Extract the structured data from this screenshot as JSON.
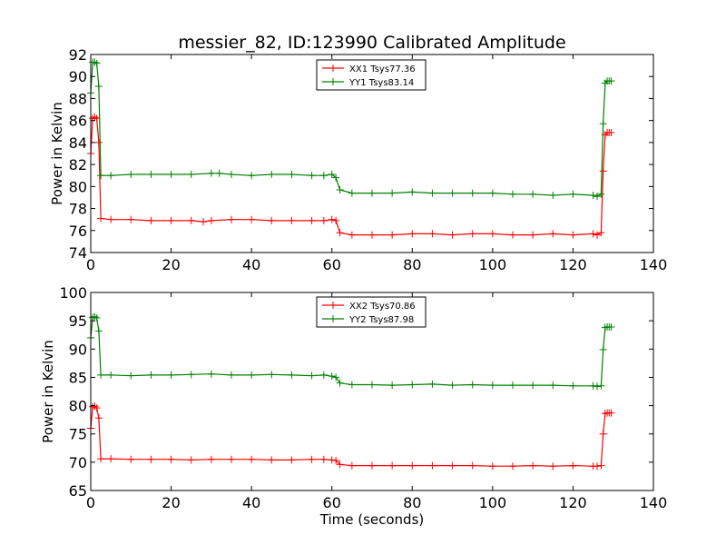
{
  "figure": {
    "title": "messier_82, ID:123990 Calibrated Amplitude",
    "xlabel": "Time (seconds)"
  },
  "chart_data": [
    {
      "type": "line",
      "title": "messier_82, ID:123990 Calibrated Amplitude",
      "xlabel": "",
      "ylabel": "Power in Kelvin",
      "xlim": [
        0,
        140
      ],
      "ylim": [
        74,
        92
      ],
      "xticks": [
        "0",
        "20",
        "40",
        "60",
        "80",
        "100",
        "120",
        "140"
      ],
      "yticks": [
        "74",
        "76",
        "78",
        "80",
        "82",
        "84",
        "86",
        "88",
        "90",
        "92"
      ],
      "grid": false,
      "legend_position": "top-center",
      "series": [
        {
          "name": "XX1 Tsys77.36",
          "color": "#ff0000",
          "x": [
            0,
            0.5,
            1,
            1.5,
            2,
            2.5,
            5,
            10,
            15,
            20,
            25,
            28,
            30,
            35,
            40,
            45,
            50,
            55,
            58,
            60,
            61,
            62,
            65,
            70,
            75,
            80,
            85,
            90,
            95,
            100,
            105,
            110,
            115,
            120,
            125,
            126,
            127,
            127.5,
            128,
            128.5,
            129,
            129.5
          ],
          "values": [
            83.0,
            86.2,
            86.3,
            86.2,
            84.0,
            77.1,
            77.0,
            77.0,
            76.9,
            76.9,
            76.9,
            76.8,
            76.9,
            77.0,
            77.0,
            76.9,
            76.9,
            76.9,
            76.9,
            77.0,
            76.9,
            75.8,
            75.6,
            75.6,
            75.6,
            75.7,
            75.7,
            75.6,
            75.7,
            75.7,
            75.6,
            75.6,
            75.7,
            75.6,
            75.7,
            75.6,
            75.8,
            81.4,
            84.7,
            84.9,
            84.9,
            84.9
          ]
        },
        {
          "name": "YY1 Tsys83.14",
          "color": "#008000",
          "x": [
            0,
            0.5,
            1,
            1.5,
            2,
            2.5,
            5,
            10,
            15,
            20,
            25,
            30,
            32,
            35,
            40,
            45,
            50,
            55,
            58,
            60,
            61,
            62,
            65,
            70,
            75,
            80,
            85,
            90,
            95,
            100,
            105,
            110,
            115,
            120,
            125,
            126,
            127,
            127.5,
            128,
            128.5,
            129,
            129.5
          ],
          "values": [
            88.5,
            91.3,
            91.3,
            91.2,
            89.1,
            81.0,
            81.0,
            81.1,
            81.1,
            81.1,
            81.1,
            81.2,
            81.2,
            81.1,
            81.0,
            81.1,
            81.1,
            81.0,
            81.0,
            81.1,
            80.8,
            79.7,
            79.4,
            79.4,
            79.4,
            79.5,
            79.4,
            79.4,
            79.4,
            79.4,
            79.3,
            79.3,
            79.2,
            79.3,
            79.2,
            79.1,
            79.3,
            85.7,
            89.4,
            89.6,
            89.6,
            89.6
          ]
        }
      ]
    },
    {
      "type": "line",
      "title": "",
      "xlabel": "Time (seconds)",
      "ylabel": "Power in Kelvin",
      "xlim": [
        0,
        140
      ],
      "ylim": [
        65,
        100
      ],
      "xticks": [
        "0",
        "20",
        "40",
        "60",
        "80",
        "100",
        "120",
        "140"
      ],
      "yticks": [
        "65",
        "70",
        "75",
        "80",
        "85",
        "90",
        "95",
        "100"
      ],
      "grid": false,
      "legend_position": "top-center",
      "series": [
        {
          "name": "XX2 Tsys70.86",
          "color": "#ff0000",
          "x": [
            0,
            0.5,
            1,
            1.5,
            2,
            2.5,
            5,
            10,
            15,
            20,
            25,
            30,
            35,
            40,
            45,
            50,
            55,
            58,
            60,
            61,
            62,
            65,
            70,
            75,
            80,
            85,
            90,
            95,
            100,
            105,
            110,
            115,
            120,
            125,
            126,
            127,
            127.5,
            128,
            128.5,
            129,
            129.5
          ],
          "values": [
            76.0,
            79.8,
            79.9,
            79.6,
            77.8,
            70.6,
            70.6,
            70.5,
            70.5,
            70.5,
            70.4,
            70.5,
            70.5,
            70.5,
            70.4,
            70.4,
            70.5,
            70.5,
            70.4,
            70.3,
            69.6,
            69.4,
            69.4,
            69.4,
            69.4,
            69.4,
            69.4,
            69.4,
            69.3,
            69.3,
            69.4,
            69.3,
            69.4,
            69.3,
            69.3,
            69.4,
            75.0,
            78.6,
            78.7,
            78.7,
            78.7
          ]
        },
        {
          "name": "YY2 Tsys87.98",
          "color": "#008000",
          "x": [
            0,
            0.5,
            1,
            1.5,
            2,
            2.5,
            5,
            10,
            15,
            20,
            25,
            30,
            35,
            40,
            45,
            50,
            55,
            58,
            60,
            61,
            62,
            65,
            70,
            75,
            80,
            85,
            90,
            95,
            100,
            105,
            110,
            115,
            120,
            125,
            126,
            127,
            127.5,
            128,
            128.5,
            129,
            129.5
          ],
          "values": [
            92.0,
            95.6,
            95.7,
            95.5,
            93.2,
            85.4,
            85.4,
            85.3,
            85.4,
            85.4,
            85.5,
            85.6,
            85.4,
            85.4,
            85.5,
            85.4,
            85.3,
            85.4,
            85.2,
            85.0,
            84.0,
            83.7,
            83.7,
            83.6,
            83.7,
            83.8,
            83.6,
            83.7,
            83.6,
            83.6,
            83.6,
            83.6,
            83.5,
            83.5,
            83.4,
            83.5,
            89.9,
            93.8,
            93.9,
            93.9,
            93.9
          ]
        }
      ]
    }
  ]
}
